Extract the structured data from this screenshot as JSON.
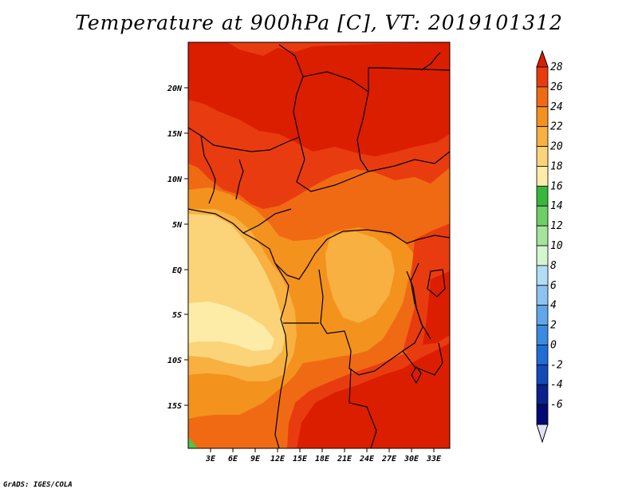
{
  "title": "Temperature at 900hPa [C], VT: 2019101312",
  "credit": "GrADS: IGES/COLA",
  "map": {
    "lat_labels": [
      "20N",
      "15N",
      "10N",
      "5N",
      "EQ",
      "5S",
      "10S",
      "15S"
    ],
    "lon_labels": [
      "3E",
      "6E",
      "9E",
      "12E",
      "15E",
      "18E",
      "21E",
      "24E",
      "27E",
      "30E",
      "33E"
    ],
    "colors": {
      "c28": "#dc1e00",
      "c26": "#e83c10",
      "c24": "#f06a14",
      "c22": "#f4921e",
      "c20": "#f8b040",
      "c18": "#fbd378",
      "c16": "#fdeca8",
      "green": "#4fc44a"
    }
  },
  "colorbar": {
    "labels": [
      "28",
      "26",
      "24",
      "22",
      "20",
      "18",
      "16",
      "14",
      "12",
      "10",
      "8",
      "6",
      "4",
      "2",
      "0",
      "-2",
      "-4",
      "-6"
    ],
    "colors": [
      "#dc1e00",
      "#e83c10",
      "#f06a14",
      "#f4921e",
      "#f8b040",
      "#fbd378",
      "#fdeca8",
      "#37b83a",
      "#6ecf67",
      "#a4e49c",
      "#d3f5cf",
      "#b3dcf5",
      "#8cc3ef",
      "#5fa7e8",
      "#3a8be0",
      "#1f6ed6",
      "#1449b8",
      "#0a2289",
      "#000a72"
    ],
    "top_color": "#dc1e00",
    "bottom_color": "#dfe2f6"
  }
}
